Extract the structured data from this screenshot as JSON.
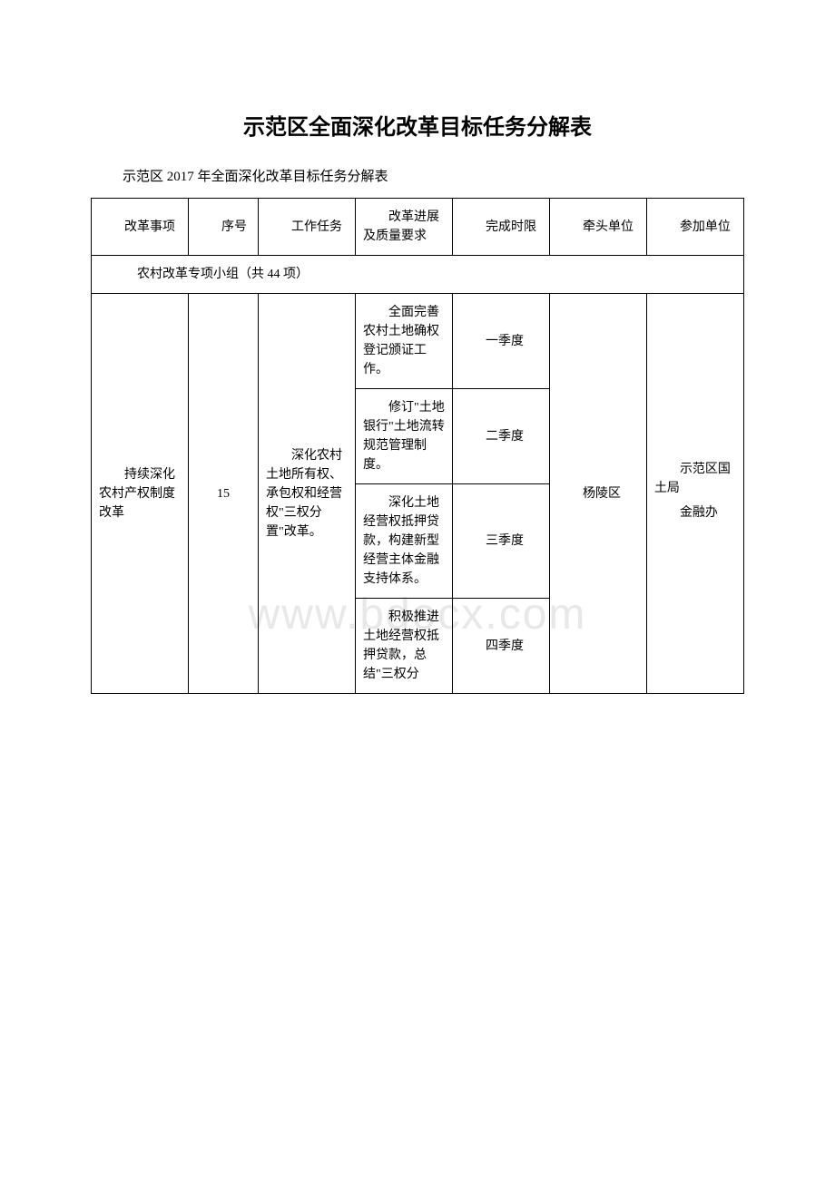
{
  "title": "示范区全面深化改革目标任务分解表",
  "subtitle": "示范区 2017 年全面深化改革目标任务分解表",
  "watermark": "www.bdocx.com",
  "headers": {
    "col1": "改革事项",
    "col2": "序号",
    "col3": "工作任务",
    "col4": "改革进展及质量要求",
    "col5": "完成时限",
    "col6": "牵头单位",
    "col7": "参加单位"
  },
  "groupHeader": "农村改革专项小组（共 44 项）",
  "mainRow": {
    "reformItem": "持续深化农村产权制度改革",
    "sequence": "15",
    "workTask": "深化农村土地所有权、承包权和经营权\"三权分置\"改革。",
    "leadUnit": "杨陵区",
    "participateUnit": "示范区国土局\n金融办"
  },
  "subRows": [
    {
      "progress": "全面完善农村土地确权登记颁证工作。",
      "deadline": "一季度"
    },
    {
      "progress": "修订\"土地银行\"土地流转规范管理制度。",
      "deadline": "二季度"
    },
    {
      "progress": "深化土地经营权抵押贷款，构建新型经营主体金融支持体系。",
      "deadline": "三季度"
    },
    {
      "progress": "积极推进土地经营权抵押贷款，总结\"三权分",
      "deadline": "四季度"
    }
  ],
  "styling": {
    "backgroundColor": "#ffffff",
    "borderColor": "#000000",
    "textColor": "#000000",
    "watermarkColor": "#e8e8e8",
    "titleFontSize": 24,
    "subtitleFontSize": 15,
    "cellFontSize": 14,
    "watermarkFontSize": 48
  }
}
